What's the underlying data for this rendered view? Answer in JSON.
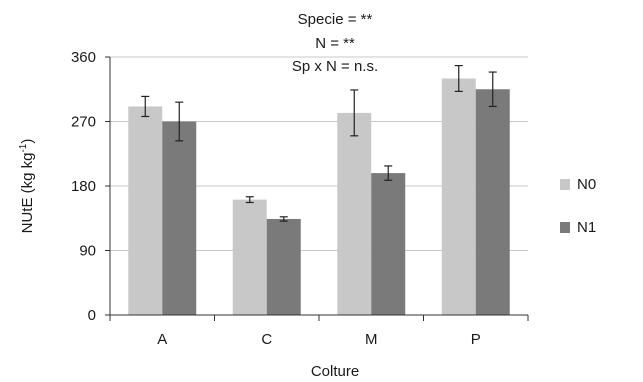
{
  "chart_data": {
    "type": "bar",
    "title_lines": [
      "Specie = **",
      "N = **",
      "Sp x N = n.s."
    ],
    "xlabel": "Colture",
    "ylabel_main": "NUtE (kg kg",
    "ylabel_sup": "-1",
    "ylabel_close": ")",
    "ylim": [
      0,
      360
    ],
    "yticks": [
      0,
      90,
      180,
      270,
      360
    ],
    "grid": true,
    "legend_position": "right",
    "categories": [
      "A",
      "C",
      "M",
      "P"
    ],
    "series": [
      {
        "name": "N0",
        "color": "#c8c8c8",
        "values": [
          291,
          161,
          282,
          330
        ],
        "errors": [
          14,
          4,
          32,
          18
        ]
      },
      {
        "name": "N1",
        "color": "#7a7a7a",
        "values": [
          270,
          134,
          198,
          315
        ],
        "errors": [
          27,
          3,
          10,
          24
        ]
      }
    ]
  }
}
